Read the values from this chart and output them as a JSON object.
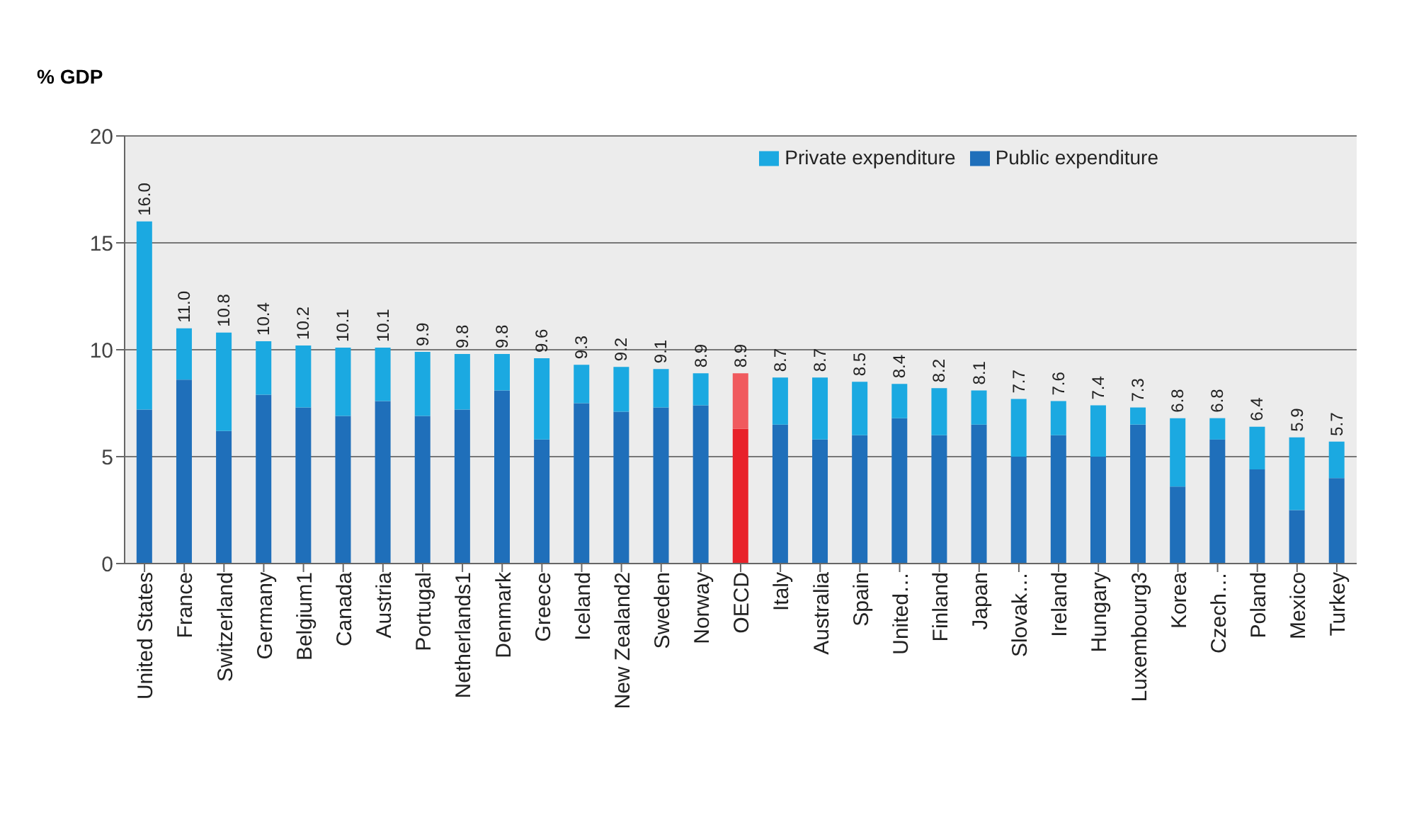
{
  "chart_data": {
    "type": "bar",
    "stacked": true,
    "ylabel": "% GDP",
    "categories": [
      "United States",
      "France",
      "Switzerland",
      "Germany",
      "Belgium1",
      "Canada",
      "Austria",
      "Portugal",
      "Netherlands1",
      "Denmark",
      "Greece",
      "Iceland",
      "New Zealand2",
      "Sweden",
      "Norway",
      "OECD",
      "Italy",
      "Australia",
      "Spain",
      "United…",
      "Finland",
      "Japan",
      "Slovak…",
      "Ireland",
      "Hungary",
      "Luxembourg3",
      "Korea",
      "Czech…",
      "Poland",
      "Mexico",
      "Turkey"
    ],
    "series": [
      {
        "name": "Public expenditure",
        "color": "#1f6fba",
        "colors": [
          "#1f6fba",
          "#1f6fba",
          "#1f6fba",
          "#1f6fba",
          "#1f6fba",
          "#1f6fba",
          "#1f6fba",
          "#1f6fba",
          "#1f6fba",
          "#1f6fba",
          "#1f6fba",
          "#1f6fba",
          "#1f6fba",
          "#1f6fba",
          "#1f6fba",
          "#e8222a",
          "#1f6fba",
          "#1f6fba",
          "#1f6fba",
          "#1f6fba",
          "#1f6fba",
          "#1f6fba",
          "#1f6fba",
          "#1f6fba",
          "#1f6fba",
          "#1f6fba",
          "#1f6fba",
          "#1f6fba",
          "#1f6fba",
          "#1f6fba",
          "#1f6fba"
        ],
        "values": [
          7.2,
          8.6,
          6.2,
          7.9,
          7.3,
          6.9,
          7.6,
          6.9,
          7.2,
          8.1,
          5.8,
          7.5,
          7.1,
          7.3,
          7.4,
          6.3,
          6.5,
          5.8,
          6.0,
          6.8,
          6.0,
          6.5,
          5.0,
          6.0,
          5.0,
          6.5,
          3.6,
          5.8,
          4.4,
          2.5,
          4.0
        ]
      },
      {
        "name": "Private expenditure",
        "color": "#1ba9e1",
        "colors": [
          "#1ba9e1",
          "#1ba9e1",
          "#1ba9e1",
          "#1ba9e1",
          "#1ba9e1",
          "#1ba9e1",
          "#1ba9e1",
          "#1ba9e1",
          "#1ba9e1",
          "#1ba9e1",
          "#1ba9e1",
          "#1ba9e1",
          "#1ba9e1",
          "#1ba9e1",
          "#1ba9e1",
          "#f05a5e",
          "#1ba9e1",
          "#1ba9e1",
          "#1ba9e1",
          "#1ba9e1",
          "#1ba9e1",
          "#1ba9e1",
          "#1ba9e1",
          "#1ba9e1",
          "#1ba9e1",
          "#1ba9e1",
          "#1ba9e1",
          "#1ba9e1",
          "#1ba9e1",
          "#1ba9e1",
          "#1ba9e1"
        ],
        "values": [
          8.8,
          2.4,
          4.6,
          2.5,
          2.9,
          3.2,
          2.5,
          3.0,
          2.6,
          1.7,
          3.8,
          1.8,
          2.1,
          1.8,
          1.5,
          2.6,
          2.2,
          2.9,
          2.5,
          1.6,
          2.2,
          1.6,
          2.7,
          1.6,
          2.4,
          0.8,
          3.2,
          1.0,
          2.0,
          3.4,
          1.7
        ]
      }
    ],
    "totals": [
      "16.0",
      "11.0",
      "10.8",
      "10.4",
      "10.2",
      "10.1",
      "10.1",
      "9.9",
      "9.8",
      "9.8",
      "9.6",
      "9.3",
      "9.2",
      "9.1",
      "8.9",
      "8.9",
      "8.7",
      "8.7",
      "8.5",
      "8.4",
      "8.2",
      "8.1",
      "7.7",
      "7.6",
      "7.4",
      "7.3",
      "6.8",
      "6.8",
      "6.4",
      "5.9",
      "5.7"
    ],
    "ylim": [
      0,
      20
    ],
    "yticks": [
      0,
      5,
      10,
      15,
      20
    ],
    "grid": "y",
    "legend": "top right"
  }
}
